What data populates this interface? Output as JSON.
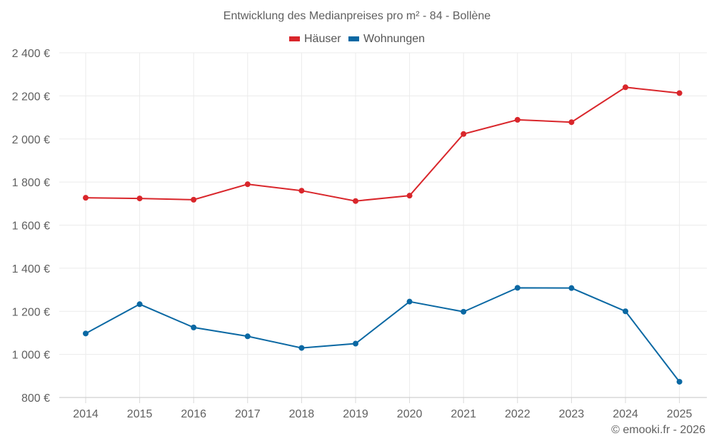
{
  "chart_data": {
    "type": "line",
    "title": "Entwicklung des Medianpreises pro m² - 84 - Bollène",
    "xlabel": "",
    "ylabel": "",
    "categories": [
      "2014",
      "2015",
      "2016",
      "2017",
      "2018",
      "2019",
      "2020",
      "2021",
      "2022",
      "2023",
      "2024",
      "2025"
    ],
    "ylim": [
      800,
      2400
    ],
    "y_ticks": [
      800,
      1000,
      1200,
      1400,
      1600,
      1800,
      2000,
      2200,
      2400
    ],
    "y_tick_labels": [
      "800 €",
      "1 000 €",
      "1 200 €",
      "1 400 €",
      "1 600 €",
      "1 800 €",
      "2 000 €",
      "2 200 €",
      "2 400 €"
    ],
    "grid": true,
    "legend_position": "top-center",
    "series": [
      {
        "name": "Häuser",
        "color": "#d9262b",
        "values": [
          1727,
          1724,
          1718,
          1790,
          1760,
          1712,
          1737,
          2023,
          2089,
          2078,
          2240,
          2213
        ]
      },
      {
        "name": "Wohnungen",
        "color": "#0a68a3",
        "values": [
          1097,
          1233,
          1125,
          1084,
          1030,
          1050,
          1245,
          1198,
          1309,
          1308,
          1200,
          873
        ]
      }
    ]
  },
  "credit": "© emooki.fr - 2026"
}
